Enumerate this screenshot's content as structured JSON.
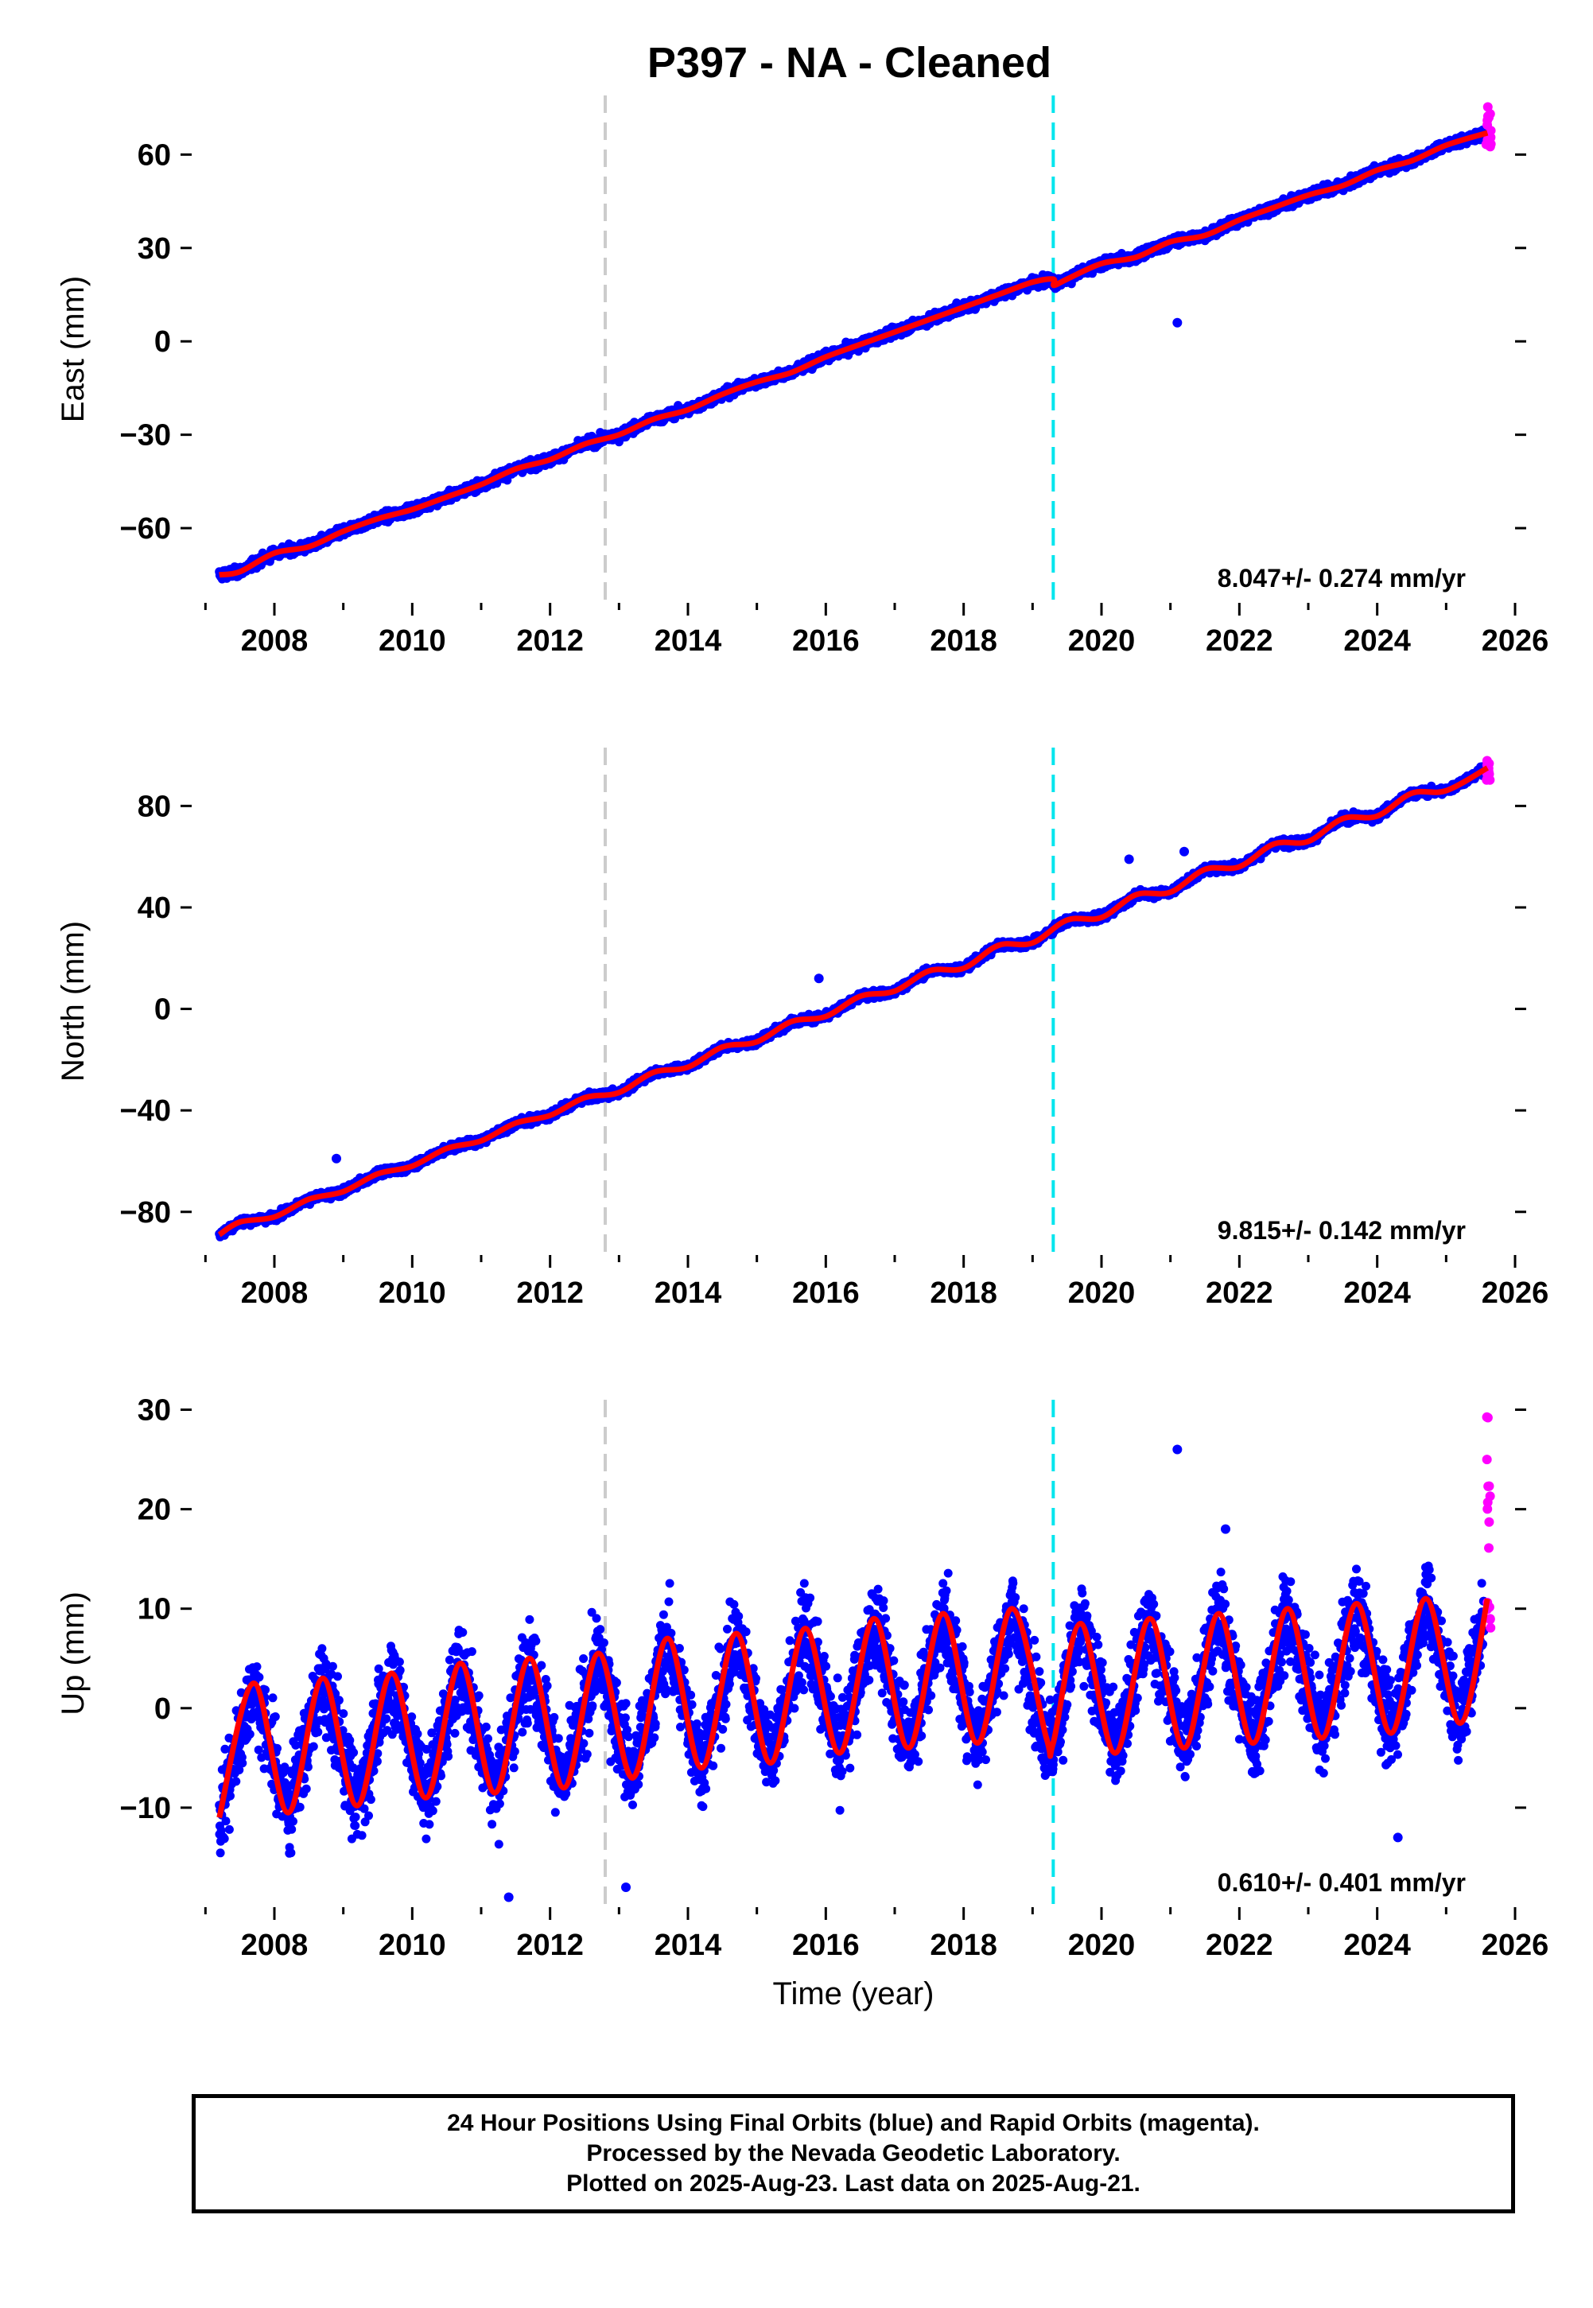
{
  "title": "P397  - NA - Cleaned",
  "colors": {
    "final_orbits": "#0000ff",
    "rapid_orbits": "#ff00ff",
    "model": "#ff0000",
    "antenna_change": "#cccccc",
    "equipment_change": "#00e5ee"
  },
  "chart_data": [
    {
      "type": "scatter",
      "name": "east",
      "ylabel": "East (mm)",
      "xlabel": "",
      "xlim": [
        2006.8,
        2026.0
      ],
      "ylim": [
        -84,
        79
      ],
      "yticks": [
        -60,
        -30,
        0,
        30,
        60
      ],
      "ytick_labels": [
        "−60",
        "−30",
        "0",
        "30",
        "60"
      ],
      "xticks": [
        2008,
        2010,
        2012,
        2014,
        2016,
        2018,
        2020,
        2022,
        2024,
        2026
      ],
      "xtick_labels": [
        "2008",
        "2010",
        "2012",
        "2014",
        "2016",
        "2018",
        "2020",
        "2022",
        "2024",
        "2026"
      ],
      "rate": "8.047+/- 0.274 mm/yr",
      "vlines": [
        {
          "x": 2012.8,
          "kind": "antenna_change"
        },
        {
          "x": 2019.3,
          "kind": "equipment_change"
        }
      ],
      "model_points": [
        [
          2007.2,
          -75
        ],
        [
          2007.5,
          -74
        ],
        [
          2008.0,
          -68
        ],
        [
          2008.5,
          -66
        ],
        [
          2009.0,
          -61
        ],
        [
          2009.5,
          -57
        ],
        [
          2010.0,
          -54
        ],
        [
          2010.5,
          -50
        ],
        [
          2011.0,
          -46
        ],
        [
          2011.5,
          -41
        ],
        [
          2012.0,
          -38
        ],
        [
          2012.5,
          -33
        ],
        [
          2013.0,
          -30
        ],
        [
          2013.5,
          -25
        ],
        [
          2014.0,
          -22
        ],
        [
          2014.5,
          -17
        ],
        [
          2015.0,
          -13
        ],
        [
          2015.5,
          -10
        ],
        [
          2016.0,
          -5
        ],
        [
          2016.5,
          -1
        ],
        [
          2017.0,
          3
        ],
        [
          2017.5,
          7
        ],
        [
          2018.0,
          11
        ],
        [
          2018.5,
          15
        ],
        [
          2019.0,
          19
        ],
        [
          2019.3,
          20
        ],
        [
          2019.31,
          18
        ],
        [
          2019.5,
          20
        ],
        [
          2020.0,
          25
        ],
        [
          2020.5,
          27
        ],
        [
          2021.0,
          32
        ],
        [
          2021.5,
          34
        ],
        [
          2022.0,
          39
        ],
        [
          2022.5,
          43
        ],
        [
          2023.0,
          47
        ],
        [
          2023.5,
          50
        ],
        [
          2024.0,
          55
        ],
        [
          2024.5,
          58
        ],
        [
          2025.0,
          63
        ],
        [
          2025.6,
          67
        ]
      ],
      "outliers": [
        [
          2021.1,
          6
        ]
      ],
      "rapid_range": [
        62,
        76
      ]
    },
    {
      "type": "scatter",
      "name": "north",
      "ylabel": "North (mm)",
      "xlabel": "",
      "xlim": [
        2006.8,
        2026.0
      ],
      "ylim": [
        -97,
        103
      ],
      "yticks": [
        -80,
        -40,
        0,
        40,
        80
      ],
      "ytick_labels": [
        "−80",
        "−40",
        "0",
        "40",
        "80"
      ],
      "xticks": [
        2008,
        2010,
        2012,
        2014,
        2016,
        2018,
        2020,
        2022,
        2024,
        2026
      ],
      "xtick_labels": [
        "2008",
        "2010",
        "2012",
        "2014",
        "2016",
        "2018",
        "2020",
        "2022",
        "2024",
        "2026"
      ],
      "rate": "9.815+/- 0.142 mm/yr",
      "vlines": [
        {
          "x": 2012.8,
          "kind": "antenna_change"
        },
        {
          "x": 2019.3,
          "kind": "equipment_change"
        }
      ],
      "model_points": [
        [
          2007.2,
          -89
        ],
        [
          2007.5,
          -84
        ],
        [
          2008.0,
          -82
        ],
        [
          2008.5,
          -75
        ],
        [
          2009.0,
          -72
        ],
        [
          2009.5,
          -65
        ],
        [
          2010.0,
          -62
        ],
        [
          2010.5,
          -55
        ],
        [
          2011.0,
          -52
        ],
        [
          2011.5,
          -45
        ],
        [
          2012.0,
          -42
        ],
        [
          2012.5,
          -35
        ],
        [
          2013.0,
          -33
        ],
        [
          2013.5,
          -25
        ],
        [
          2014.0,
          -23
        ],
        [
          2014.5,
          -15
        ],
        [
          2015.0,
          -13
        ],
        [
          2015.5,
          -5
        ],
        [
          2016.0,
          -3
        ],
        [
          2016.5,
          5
        ],
        [
          2017.0,
          7
        ],
        [
          2017.5,
          15
        ],
        [
          2018.0,
          16
        ],
        [
          2018.5,
          25
        ],
        [
          2019.0,
          26
        ],
        [
          2019.5,
          35
        ],
        [
          2020.0,
          36
        ],
        [
          2020.5,
          45
        ],
        [
          2021.0,
          46
        ],
        [
          2021.5,
          55
        ],
        [
          2022.0,
          56
        ],
        [
          2022.5,
          65
        ],
        [
          2023.0,
          66
        ],
        [
          2023.5,
          75
        ],
        [
          2024.0,
          76
        ],
        [
          2024.5,
          85
        ],
        [
          2025.0,
          86
        ],
        [
          2025.6,
          95
        ]
      ],
      "outliers": [
        [
          2008.9,
          -59
        ],
        [
          2015.9,
          12
        ],
        [
          2020.4,
          59
        ],
        [
          2021.2,
          62
        ]
      ],
      "rapid_range": [
        90,
        99
      ]
    },
    {
      "type": "scatter",
      "name": "up",
      "ylabel": "Up (mm)",
      "xlabel": "Time (year)",
      "xlim": [
        2006.8,
        2026.0
      ],
      "ylim": [
        -20,
        31
      ],
      "yticks": [
        -10,
        0,
        10,
        20,
        30
      ],
      "ytick_labels": [
        "−10",
        "0",
        "10",
        "20",
        "30"
      ],
      "xticks": [
        2008,
        2010,
        2012,
        2014,
        2016,
        2018,
        2020,
        2022,
        2024,
        2026
      ],
      "xtick_labels": [
        "2008",
        "2010",
        "2012",
        "2014",
        "2016",
        "2018",
        "2020",
        "2022",
        "2024",
        "2026"
      ],
      "rate": "0.610+/- 0.401 mm/yr",
      "vlines": [
        {
          "x": 2012.8,
          "kind": "antenna_change"
        },
        {
          "x": 2019.3,
          "kind": "equipment_change"
        }
      ],
      "model_points": [
        [
          2007.2,
          -11
        ],
        [
          2007.7,
          2.5
        ],
        [
          2008.2,
          -10.5
        ],
        [
          2008.7,
          3
        ],
        [
          2009.2,
          -9.8
        ],
        [
          2009.7,
          3.5
        ],
        [
          2010.2,
          -9
        ],
        [
          2010.7,
          4.5
        ],
        [
          2011.2,
          -8.5
        ],
        [
          2011.7,
          5
        ],
        [
          2012.2,
          -8
        ],
        [
          2012.7,
          5.5
        ],
        [
          2013.2,
          -7
        ],
        [
          2013.7,
          7
        ],
        [
          2014.2,
          -6
        ],
        [
          2014.7,
          7.5
        ],
        [
          2015.2,
          -5.5
        ],
        [
          2015.7,
          8
        ],
        [
          2016.2,
          -4.5
        ],
        [
          2016.7,
          9
        ],
        [
          2017.2,
          -4
        ],
        [
          2017.7,
          9.5
        ],
        [
          2018.2,
          -3.5
        ],
        [
          2018.7,
          10
        ],
        [
          2019.2,
          -3
        ],
        [
          2019.3,
          -3.5
        ],
        [
          2019.7,
          8.5
        ],
        [
          2020.2,
          -4.5
        ],
        [
          2020.7,
          9
        ],
        [
          2021.2,
          -4
        ],
        [
          2021.7,
          9.5
        ],
        [
          2022.2,
          -3.5
        ],
        [
          2022.7,
          10
        ],
        [
          2023.2,
          -3
        ],
        [
          2023.7,
          10.5
        ],
        [
          2024.2,
          -2.5
        ],
        [
          2024.7,
          11
        ],
        [
          2025.2,
          -1.5
        ],
        [
          2025.6,
          11
        ]
      ],
      "outliers": [
        [
          2021.1,
          26
        ],
        [
          2021.8,
          18
        ],
        [
          2011.4,
          -19
        ],
        [
          2013.1,
          -18
        ],
        [
          2024.3,
          -13
        ]
      ],
      "rapid_range": [
        8,
        30
      ]
    }
  ],
  "footer": {
    "line1": "24 Hour Positions Using Final Orbits (blue) and Rapid Orbits (magenta).",
    "line2": "Processed by the Nevada Geodetic Laboratory.",
    "line3": "Plotted on 2025-Aug-23. Last data on 2025-Aug-21."
  }
}
